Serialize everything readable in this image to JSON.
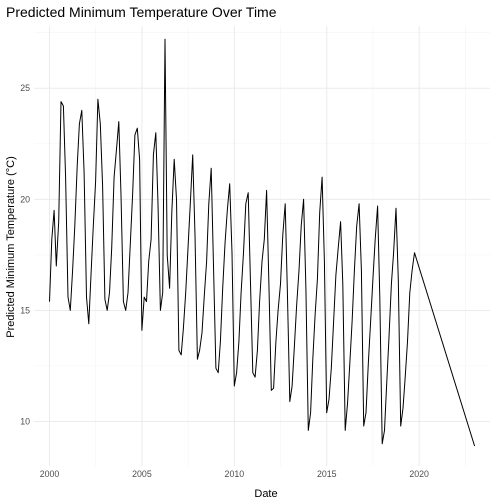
{
  "chart_data": {
    "type": "line",
    "title": "Predicted Minimum Temperature Over Time",
    "xlabel": "Date",
    "ylabel": "Predicted Minimum Temperature (°C)",
    "x_ticks": [
      "2000",
      "2005",
      "2010",
      "2015",
      "2020"
    ],
    "x_tick_values": [
      "2000-01-01",
      "2005-01-01",
      "2010-01-01",
      "2015-01-01",
      "2020-01-01"
    ],
    "y_ticks": [
      10,
      15,
      20,
      25
    ],
    "xlim": [
      "1999-03-01",
      "2023-11-01"
    ],
    "ylim": [
      8.0,
      27.8
    ],
    "grid": true,
    "legend": "none",
    "line_color": "#000000",
    "series": [
      {
        "x": [
          "2000-01-01",
          "2000-02-15",
          "2000-04-01",
          "2000-05-15",
          "2000-07-01",
          "2000-08-15",
          "2000-10-01",
          "2000-11-15",
          "2001-01-01",
          "2001-02-15",
          "2001-04-01",
          "2001-05-15",
          "2001-07-01",
          "2001-08-15",
          "2001-10-01",
          "2001-11-15",
          "2002-01-01",
          "2002-02-15",
          "2002-04-01",
          "2002-05-15",
          "2002-07-01",
          "2002-08-15",
          "2002-10-01",
          "2002-11-15",
          "2003-01-01",
          "2003-02-15",
          "2003-04-01",
          "2003-05-15",
          "2003-07-01",
          "2003-08-15",
          "2003-10-01",
          "2003-11-15",
          "2004-01-01",
          "2004-02-15",
          "2004-04-01",
          "2004-05-15",
          "2004-07-01",
          "2004-08-15",
          "2004-10-01",
          "2004-11-15",
          "2005-01-01",
          "2005-02-15",
          "2005-04-01",
          "2005-05-15",
          "2005-07-01",
          "2005-08-15",
          "2005-10-01",
          "2005-11-15",
          "2006-01-01",
          "2006-02-15",
          "2006-04-01",
          "2006-05-15",
          "2006-07-01",
          "2006-08-15",
          "2006-10-01",
          "2006-11-15",
          "2007-01-01",
          "2007-02-15",
          "2007-04-01",
          "2007-05-15",
          "2007-07-01",
          "2007-08-15",
          "2007-10-01",
          "2007-11-15",
          "2008-01-01",
          "2008-02-15",
          "2008-04-01",
          "2008-05-15",
          "2008-07-01",
          "2008-08-15",
          "2008-10-01",
          "2008-11-15",
          "2009-01-01",
          "2009-02-15",
          "2009-04-01",
          "2009-05-15",
          "2009-07-01",
          "2009-08-15",
          "2009-10-01",
          "2009-11-15",
          "2010-01-01",
          "2010-02-15",
          "2010-04-01",
          "2010-05-15",
          "2010-07-01",
          "2010-08-15",
          "2010-10-01",
          "2010-11-15",
          "2011-01-01",
          "2011-02-15",
          "2011-04-01",
          "2011-05-15",
          "2011-07-01",
          "2011-08-15",
          "2011-10-01",
          "2011-11-15",
          "2012-01-01",
          "2012-02-15",
          "2012-04-01",
          "2012-05-15",
          "2012-07-01",
          "2012-08-15",
          "2012-10-01",
          "2012-11-15",
          "2013-01-01",
          "2013-02-15",
          "2013-04-01",
          "2013-05-15",
          "2013-07-01",
          "2013-08-15",
          "2013-10-01",
          "2013-11-15",
          "2014-01-01",
          "2014-02-15",
          "2014-04-01",
          "2014-05-15",
          "2014-07-01",
          "2014-08-15",
          "2014-10-01",
          "2014-11-15",
          "2015-01-01",
          "2015-02-15",
          "2015-04-01",
          "2015-05-15",
          "2015-07-01",
          "2015-08-15",
          "2015-10-01",
          "2015-11-15",
          "2016-01-01",
          "2016-02-15",
          "2016-04-01",
          "2016-05-15",
          "2016-07-01",
          "2016-08-15",
          "2016-10-01",
          "2016-11-15",
          "2017-01-01",
          "2017-02-15",
          "2017-04-01",
          "2017-05-15",
          "2017-07-01",
          "2017-08-15",
          "2017-10-01",
          "2017-11-15",
          "2018-01-01",
          "2018-02-15",
          "2018-04-01",
          "2018-05-15",
          "2018-07-01",
          "2018-08-15",
          "2018-10-01",
          "2018-11-15",
          "2019-01-01",
          "2019-02-15",
          "2019-04-01",
          "2019-05-15",
          "2019-07-01",
          "2019-08-15",
          "2019-10-01",
          "2023-01-01"
        ],
        "y": [
          15.4,
          18.2,
          19.5,
          17.0,
          19.0,
          24.4,
          24.2,
          21.0,
          15.6,
          15.0,
          16.8,
          18.8,
          21.5,
          23.4,
          24.0,
          21.2,
          15.6,
          14.4,
          16.6,
          18.8,
          20.8,
          24.5,
          23.4,
          20.6,
          15.5,
          15.0,
          15.8,
          17.8,
          21.0,
          22.2,
          23.5,
          20.2,
          15.4,
          15.0,
          15.8,
          18.0,
          20.2,
          22.9,
          23.2,
          21.8,
          14.1,
          15.6,
          15.4,
          17.2,
          18.2,
          22.0,
          23.0,
          19.8,
          15.0,
          15.8,
          27.2,
          17.5,
          16.0,
          19.4,
          21.8,
          20.0,
          13.2,
          13.0,
          14.2,
          15.8,
          17.8,
          19.8,
          22.0,
          18.4,
          12.8,
          13.2,
          14.0,
          15.6,
          17.2,
          19.8,
          21.4,
          17.0,
          12.4,
          12.2,
          13.6,
          16.0,
          18.0,
          19.5,
          20.7,
          17.6,
          11.6,
          12.2,
          13.6,
          15.8,
          17.6,
          19.8,
          20.3,
          16.4,
          12.2,
          12.0,
          13.2,
          15.4,
          17.2,
          18.2,
          20.4,
          16.2,
          11.4,
          11.5,
          13.6,
          15.0,
          16.2,
          18.4,
          19.8,
          15.8,
          10.9,
          11.6,
          13.4,
          15.2,
          16.8,
          18.8,
          20.0,
          16.0,
          9.6,
          10.4,
          12.8,
          14.8,
          16.4,
          19.4,
          21.0,
          17.2,
          10.4,
          11.0,
          12.4,
          14.4,
          16.6,
          17.8,
          19.0,
          16.2,
          9.6,
          10.8,
          12.6,
          14.5,
          16.8,
          18.8,
          19.8,
          16.8,
          9.8,
          10.4,
          12.6,
          14.4,
          16.4,
          18.2,
          19.7,
          15.6,
          9.0,
          9.6,
          11.8,
          13.8,
          16.2,
          17.6,
          19.6,
          16.4,
          9.8,
          10.6,
          12.0,
          13.6,
          15.8,
          16.8,
          17.6,
          8.9
        ]
      }
    ]
  }
}
